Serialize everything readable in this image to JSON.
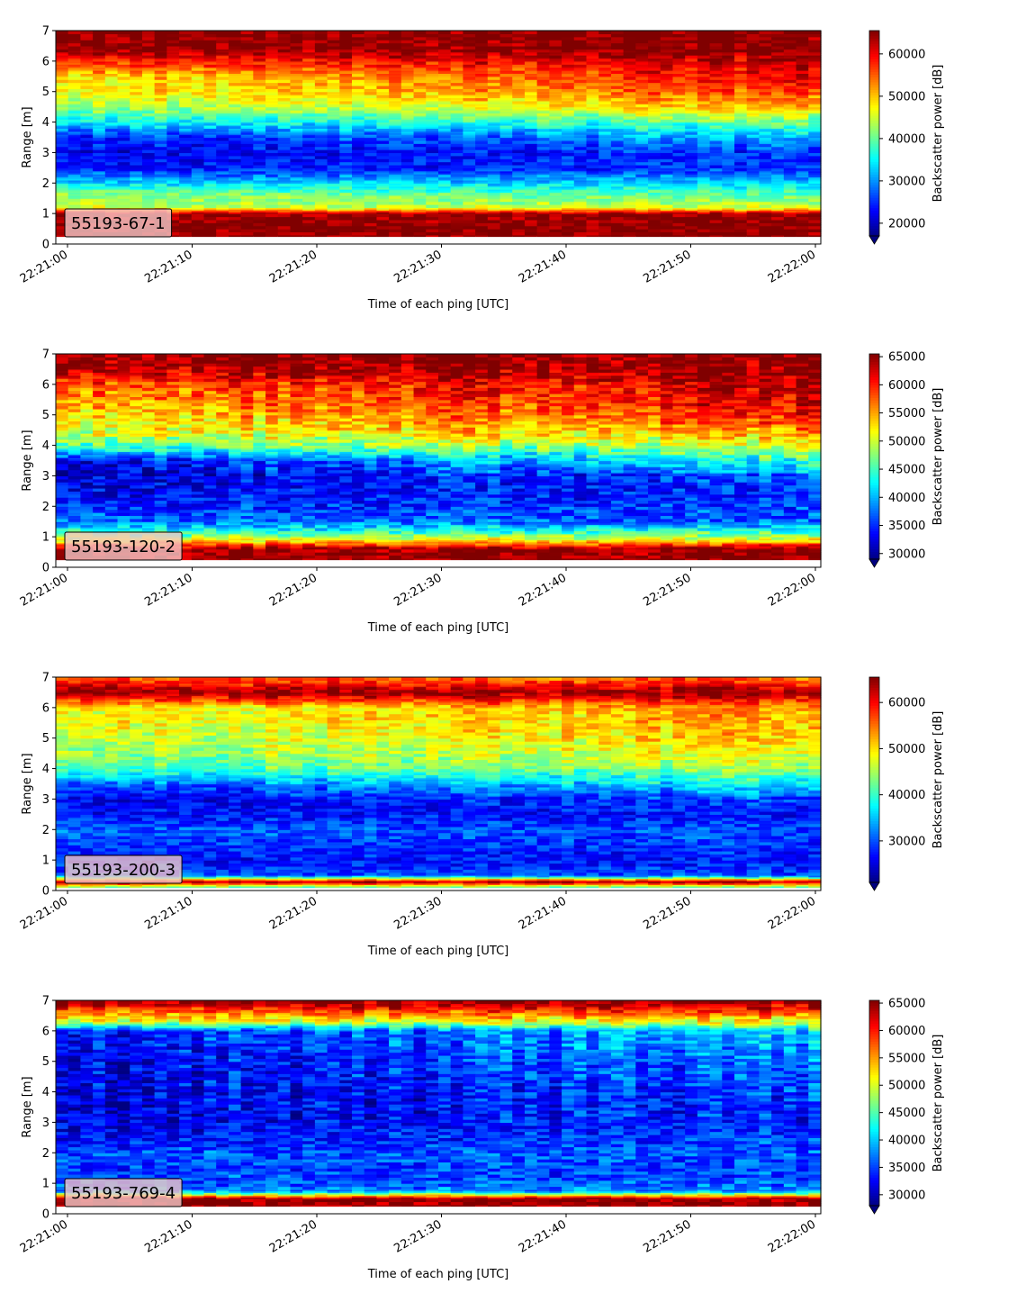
{
  "chart_data": [
    {
      "type": "heatmap",
      "label": "55193-67-1",
      "xlabel": "Time of each ping [UTC]",
      "ylabel": "Range [m]",
      "colorbar_label": "Backscatter power [dB]",
      "colormap": "jet",
      "x_ticks": [
        "22:21:00",
        "22:21:10",
        "22:21:20",
        "22:21:30",
        "22:21:40",
        "22:21:50",
        "22:22:00"
      ],
      "y_ticks": [
        0,
        1,
        2,
        3,
        4,
        5,
        6,
        7
      ],
      "ylim": [
        0,
        7
      ],
      "colorbar_ticks": [
        20000,
        30000,
        40000,
        50000,
        60000
      ],
      "clim": [
        17000,
        65500
      ],
      "profile_range_m": [
        0.25,
        0.6,
        1.0,
        1.2,
        1.6,
        2.0,
        2.5,
        3.0,
        3.5,
        4.0,
        4.5,
        5.0,
        5.5,
        6.0,
        6.4,
        6.95
      ],
      "profile_power_start": [
        65000,
        65000,
        64000,
        45000,
        42000,
        34000,
        24000,
        22000,
        24000,
        34000,
        42000,
        47000,
        48000,
        58000,
        65000,
        65000
      ],
      "profile_power_end": [
        65000,
        65000,
        64000,
        45000,
        40000,
        33000,
        25000,
        26000,
        31000,
        40000,
        50000,
        56000,
        60000,
        62000,
        65000,
        65000
      ]
    },
    {
      "type": "heatmap",
      "label": "55193-120-2",
      "xlabel": "Time of each ping [UTC]",
      "ylabel": "Range [m]",
      "colorbar_label": "Backscatter power [dB]",
      "colormap": "jet",
      "x_ticks": [
        "22:21:00",
        "22:21:10",
        "22:21:20",
        "22:21:30",
        "22:21:40",
        "22:21:50",
        "22:22:00"
      ],
      "y_ticks": [
        0,
        1,
        2,
        3,
        4,
        5,
        6,
        7
      ],
      "ylim": [
        0,
        7
      ],
      "colorbar_ticks": [
        30000,
        35000,
        40000,
        45000,
        50000,
        55000,
        60000,
        65000
      ],
      "clim": [
        29000,
        65500
      ],
      "profile_range_m": [
        0.25,
        0.6,
        0.9,
        1.1,
        1.5,
        2.0,
        2.5,
        3.0,
        3.5,
        4.0,
        4.5,
        5.0,
        5.5,
        6.0,
        6.5,
        6.95
      ],
      "profile_power_start": [
        65000,
        65000,
        52000,
        46000,
        38000,
        35000,
        33000,
        32000,
        33000,
        46000,
        51000,
        53000,
        55000,
        58000,
        64000,
        65000
      ],
      "profile_power_end": [
        65000,
        65000,
        52000,
        46000,
        37000,
        36000,
        35000,
        37000,
        44000,
        50000,
        56000,
        60000,
        62000,
        63000,
        65000,
        65000
      ]
    },
    {
      "type": "heatmap",
      "label": "55193-200-3",
      "xlabel": "Time of each ping [UTC]",
      "ylabel": "Range [m]",
      "colorbar_label": "Backscatter power [dB]",
      "colormap": "jet",
      "x_ticks": [
        "22:21:00",
        "22:21:10",
        "22:21:20",
        "22:21:30",
        "22:21:40",
        "22:21:50",
        "22:22:00"
      ],
      "y_ticks": [
        0,
        1,
        2,
        3,
        4,
        5,
        6,
        7
      ],
      "ylim": [
        0,
        7
      ],
      "colorbar_ticks": [
        30000,
        40000,
        50000,
        60000
      ],
      "clim": [
        21000,
        65500
      ],
      "profile_range_m": [
        0.1,
        0.3,
        0.5,
        1.0,
        1.5,
        2.0,
        2.5,
        3.0,
        3.5,
        4.0,
        4.5,
        5.0,
        5.5,
        6.0,
        6.5,
        6.95
      ],
      "profile_power_start": [
        40000,
        65000,
        30000,
        27000,
        29000,
        31000,
        27000,
        25000,
        30000,
        40000,
        43000,
        45000,
        47000,
        48000,
        65000,
        56000
      ],
      "profile_power_end": [
        40000,
        65000,
        30000,
        27000,
        29000,
        30000,
        27000,
        30000,
        38000,
        45000,
        49000,
        52000,
        53000,
        54000,
        65000,
        56000
      ]
    },
    {
      "type": "heatmap",
      "label": "55193-769-4",
      "xlabel": "Time of each ping [UTC]",
      "ylabel": "Range [m]",
      "colorbar_label": "Backscatter power [dB]",
      "colormap": "jet",
      "x_ticks": [
        "22:21:00",
        "22:21:10",
        "22:21:20",
        "22:21:30",
        "22:21:40",
        "22:21:50",
        "22:22:00"
      ],
      "y_ticks": [
        0,
        1,
        2,
        3,
        4,
        5,
        6,
        7
      ],
      "ylim": [
        0,
        7
      ],
      "colorbar_ticks": [
        30000,
        35000,
        40000,
        45000,
        50000,
        55000,
        60000,
        65000
      ],
      "clim": [
        28000,
        65500
      ],
      "profile_range_m": [
        0.25,
        0.5,
        0.75,
        1.0,
        1.5,
        2.0,
        2.5,
        3.0,
        3.5,
        4.0,
        4.5,
        5.0,
        5.5,
        6.0,
        6.3,
        6.95
      ],
      "profile_power_start": [
        65000,
        65000,
        38000,
        36000,
        35000,
        36000,
        33000,
        32000,
        32000,
        32000,
        32000,
        32000,
        33000,
        34000,
        50000,
        65000
      ],
      "profile_power_end": [
        65000,
        65000,
        38000,
        36000,
        35000,
        36000,
        35000,
        34000,
        34000,
        35000,
        36000,
        37000,
        39000,
        40000,
        50000,
        65000
      ]
    }
  ]
}
